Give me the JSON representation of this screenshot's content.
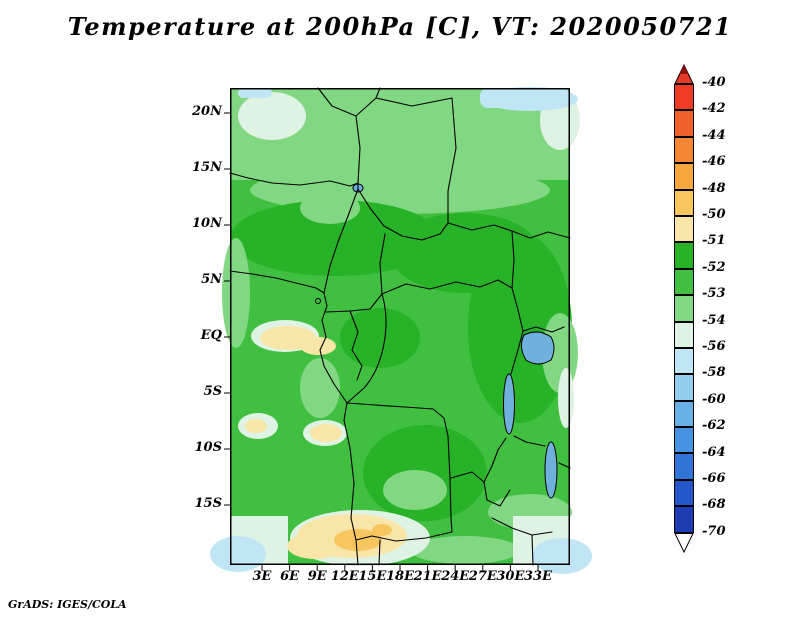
{
  "title": "Temperature at 200hPa [C], VT: 2020050721",
  "footer": "GrADS: IGES/COLA",
  "chart_data": {
    "type": "heatmap",
    "title": "Temperature at 200hPa [C], VT: 2020050721",
    "variable": "Temperature",
    "level": "200hPa",
    "units": "C",
    "valid_time": "2020050721",
    "lat_ticks": [
      "20N",
      "15N",
      "10N",
      "5N",
      "EQ",
      "5S",
      "10S",
      "15S"
    ],
    "lon_ticks": [
      "3E",
      "6E",
      "9E",
      "12E",
      "15E",
      "18E",
      "21E",
      "24E",
      "27E",
      "30E",
      "33E"
    ],
    "colorbar": {
      "orientation": "vertical",
      "tick_labels": [
        "-40",
        "-42",
        "-44",
        "-46",
        "-48",
        "-50",
        "-51",
        "-52",
        "-53",
        "-54",
        "-56",
        "-58",
        "-60",
        "-62",
        "-64",
        "-66",
        "-68",
        "-70"
      ],
      "segment_colors": [
        "#ef3b25",
        "#f2602c",
        "#f48634",
        "#f6a73f",
        "#f8c65f",
        "#f8e6a8",
        "#28b228",
        "#40bf40",
        "#82d882",
        "#dff3e4",
        "#c0e6f5",
        "#93cdee",
        "#67b0e8",
        "#4593e1",
        "#3174d6",
        "#2457c7",
        "#1e3db3"
      ],
      "arrow_top_color": "#e23b28",
      "arrow_top_tip_color": "#8f1410",
      "arrow_bottom_color": "#ffffff"
    },
    "shading_notes": [
      "Most of the map is shaded green, in the -51 to -54 range",
      "Pale yellow patches (-50 to -51) appear near 3E-12E around the equator and a larger patch near 9E-18E, 16S-19S with small -48 to -50 spots inside",
      "Very pale green (-54 to -56) and light blue (-56 to -58) appear along the map corners and edges"
    ]
  }
}
